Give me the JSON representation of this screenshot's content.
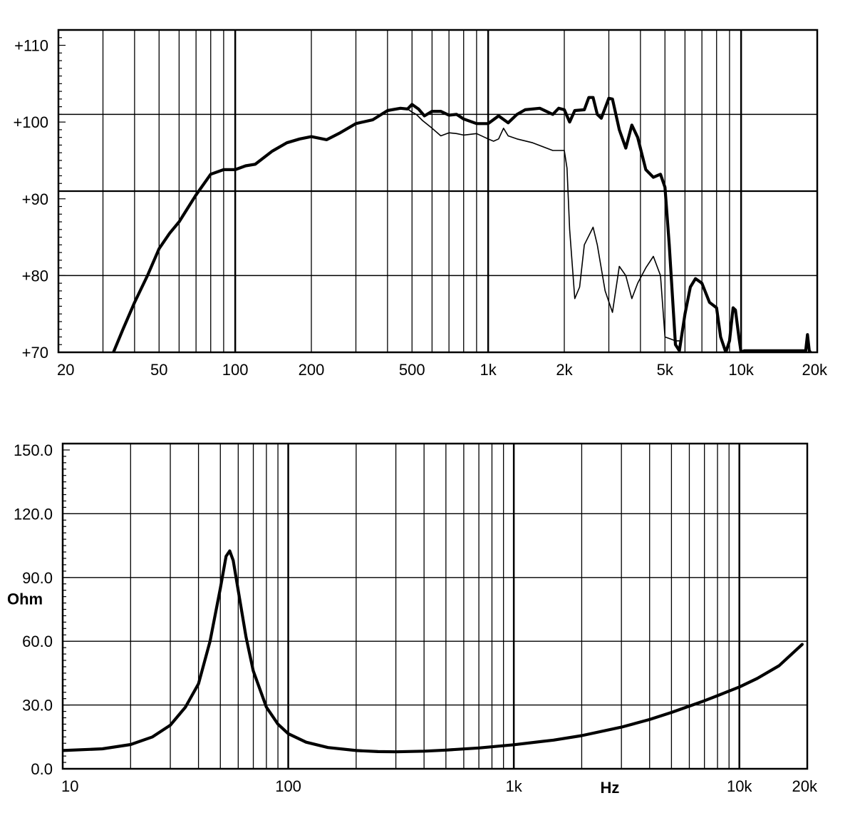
{
  "chart_data": [
    {
      "type": "line",
      "xscale": "log",
      "xlim": [
        20,
        20000
      ],
      "ylim": [
        70,
        112
      ],
      "xticks": [
        20,
        50,
        100,
        200,
        500,
        1000,
        2000,
        5000,
        10000,
        20000
      ],
      "xtick_labels": [
        "20",
        "50",
        "100",
        "200",
        "500",
        "1k",
        "2k",
        "5k",
        "10k",
        "20k"
      ],
      "yticks": [
        70,
        80,
        90,
        100,
        110
      ],
      "ytick_labels": [
        "+70",
        "+80",
        "+90",
        "+100",
        "+110"
      ],
      "major_y_grid": [
        80,
        91,
        101
      ],
      "xlabel": "",
      "ylabel": "",
      "title": "",
      "series": [
        {
          "style": "thick",
          "x": [
            33,
            36,
            40,
            45,
            50,
            55,
            60,
            70,
            80,
            90,
            100,
            110,
            120,
            140,
            160,
            180,
            200,
            230,
            260,
            300,
            350,
            400,
            450,
            480,
            500,
            530,
            560,
            600,
            650,
            700,
            750,
            800,
            900,
            1000,
            1100,
            1200,
            1300,
            1400,
            1600,
            1800,
            1900,
            2000,
            2100,
            2200,
            2400,
            2500,
            2600,
            2700,
            2800,
            3000,
            3100,
            3300,
            3500,
            3700,
            3900,
            4200,
            4500,
            4800,
            5000,
            5200,
            5500,
            5700,
            6000,
            6300,
            6600,
            7000,
            7500,
            8000,
            8300,
            8700,
            9000,
            9300,
            9500,
            9800,
            10000,
            10300,
            10600,
            18000,
            18300,
            18600,
            18800
          ],
          "y": [
            70,
            73,
            76.5,
            80,
            83.5,
            85.5,
            87,
            90.5,
            93.2,
            93.8,
            93.8,
            94.3,
            94.5,
            96.2,
            97.3,
            97.8,
            98.1,
            97.7,
            98.6,
            99.8,
            100.3,
            101.5,
            101.8,
            101.7,
            102.3,
            101.7,
            100.8,
            101.4,
            101.4,
            100.9,
            101.0,
            100.4,
            99.8,
            99.8,
            100.8,
            99.9,
            101.0,
            101.6,
            101.8,
            101.0,
            101.8,
            101.6,
            100.0,
            101.5,
            101.6,
            103.2,
            103.2,
            101.0,
            100.5,
            103.1,
            103.0,
            99.0,
            96.6,
            99.6,
            98.0,
            93.8,
            92.8,
            93.2,
            91.5,
            84.0,
            71.0,
            70.2,
            75.0,
            78.5,
            79.6,
            79.0,
            76.5,
            75.8,
            72.0,
            70.0,
            71.5,
            75.8,
            75.5,
            72.0,
            70.0,
            70.2,
            70.2,
            70.2,
            72.3,
            70.2,
            70.0
          ]
        },
        {
          "style": "thin",
          "x": [
            480,
            500,
            520,
            550,
            600,
            650,
            700,
            750,
            800,
            900,
            1000,
            1050,
            1100,
            1150,
            1200,
            1300,
            1500,
            1800,
            2000,
            2050,
            2100,
            2200,
            2300,
            2400,
            2600,
            2700,
            2900,
            3100,
            3300,
            3500,
            3700,
            3900,
            4200,
            4500,
            4800,
            5000,
            5200,
            5500,
            5700
          ],
          "y": [
            101.7,
            101.3,
            101.0,
            100.2,
            99.2,
            98.2,
            98.6,
            98.5,
            98.3,
            98.5,
            97.8,
            97.5,
            97.8,
            99.2,
            98.2,
            97.8,
            97.3,
            96.3,
            96.3,
            94.0,
            86.0,
            77.0,
            78.5,
            84.0,
            86.3,
            84.0,
            78.0,
            75.2,
            81.2,
            80.0,
            77.0,
            79.0,
            81.0,
            82.5,
            80.0,
            72.0,
            71.8,
            71.5,
            71.5
          ]
        }
      ]
    },
    {
      "type": "line",
      "xscale": "log",
      "xlim": [
        10,
        20000
      ],
      "ylim": [
        0,
        153
      ],
      "xticks": [
        10,
        100,
        1000,
        10000,
        20000
      ],
      "xtick_labels": [
        "10",
        "100",
        "1k",
        "10k",
        "20k"
      ],
      "xlabel": "Hz",
      "yticks": [
        0,
        30,
        60,
        90,
        120,
        150
      ],
      "ytick_labels": [
        "0.0",
        "30.0",
        "60.0",
        "90.0",
        "120.0",
        "150.0"
      ],
      "major_y_grid": [
        30,
        60,
        90,
        120
      ],
      "ylabel": "Ohm",
      "title": "",
      "series": [
        {
          "style": "thick",
          "x": [
            10,
            15,
            20,
            25,
            30,
            35,
            40,
            45,
            50,
            53,
            55,
            57,
            60,
            65,
            70,
            80,
            90,
            100,
            120,
            150,
            200,
            250,
            300,
            400,
            500,
            700,
            1000,
            1500,
            2000,
            3000,
            4000,
            5000,
            6000,
            7000,
            8000,
            10000,
            12000,
            15000,
            19000
          ],
          "y": [
            8.6,
            9.4,
            11.4,
            15.0,
            20.5,
            29.0,
            40.0,
            60.0,
            85.0,
            100.0,
            102.5,
            98.0,
            84.0,
            62.0,
            46.0,
            29.0,
            21.0,
            16.5,
            12.5,
            10.0,
            8.6,
            8.1,
            8.0,
            8.3,
            8.8,
            9.8,
            11.3,
            13.5,
            15.6,
            19.6,
            23.2,
            26.5,
            29.5,
            32.0,
            34.4,
            38.5,
            42.5,
            48.5,
            58.5
          ]
        }
      ]
    }
  ]
}
